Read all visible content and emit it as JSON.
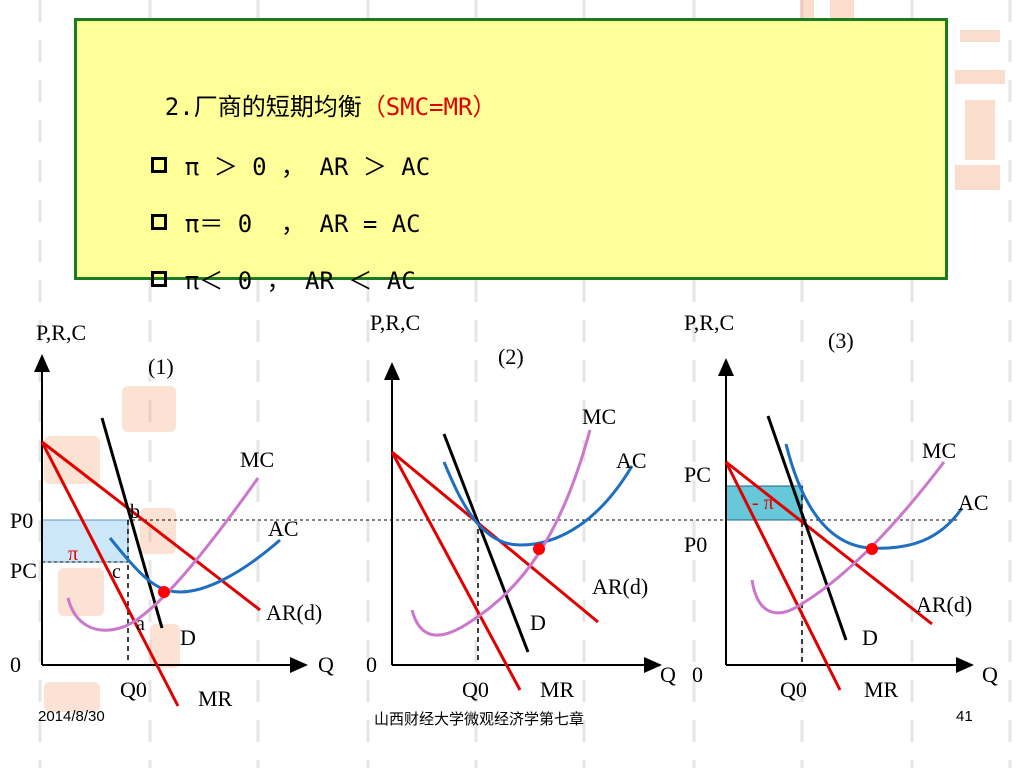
{
  "heading": {
    "number": "2.",
    "title": "厂商的短期均衡",
    "condition": "（SMC=MR）"
  },
  "bullets": [
    {
      "text": "π ＞ 0 ， AR ＞ AC"
    },
    {
      "text": "π＝ 0  ， AR = AC"
    },
    {
      "text": "π＜ 0 ， AR ＜ AC"
    }
  ],
  "graphs": [
    {
      "panel_label": "(1)",
      "y_axis_label": "P,R,C",
      "x_axis_label": "Q",
      "origin_label": "0",
      "q_label": "Q0",
      "price_labels": {
        "upper": "P0",
        "lower": "PC"
      },
      "curve_labels": {
        "mc": "MC",
        "ac": "AC",
        "ard": "AR(d)",
        "mr": "MR",
        "d": "D"
      },
      "point_labels": {
        "b": "b",
        "c": "c",
        "a": "a"
      },
      "region_label": "π"
    },
    {
      "panel_label": "(2)",
      "y_axis_label": "P,R,C",
      "x_axis_label": "Q",
      "origin_label": "0",
      "q_label": "Q0",
      "curve_labels": {
        "mc": "MC",
        "ac": "AC",
        "ard": "AR(d)",
        "mr": "MR",
        "d": "D"
      }
    },
    {
      "panel_label": "(3)",
      "y_axis_label": "P,R,C",
      "x_axis_label": "Q",
      "origin_label": "0",
      "q_label": "Q0",
      "price_labels": {
        "upper": "PC",
        "lower": "P0"
      },
      "curve_labels": {
        "mc": "MC",
        "ac": "AC",
        "ard": "AR(d)",
        "mr": "MR",
        "d": "D"
      },
      "region_label": "- π"
    }
  ],
  "footer": {
    "date": "2014/8/30",
    "center": "山西财经大学微观经济学第七章",
    "page": "41"
  },
  "colors": {
    "title_box_bg": "#ffff99",
    "title_box_border": "#1e7a1e",
    "condition_text": "#e00000",
    "mc_curve": "#cc77cc",
    "ac_curve": "#1f6fc0",
    "ar_mr_lines": "#e00000",
    "d_line": "#000000",
    "profit_fill": "#cce8f8",
    "loss_fill": "#66c8d8",
    "equilibrium_point": "#ff0000"
  }
}
